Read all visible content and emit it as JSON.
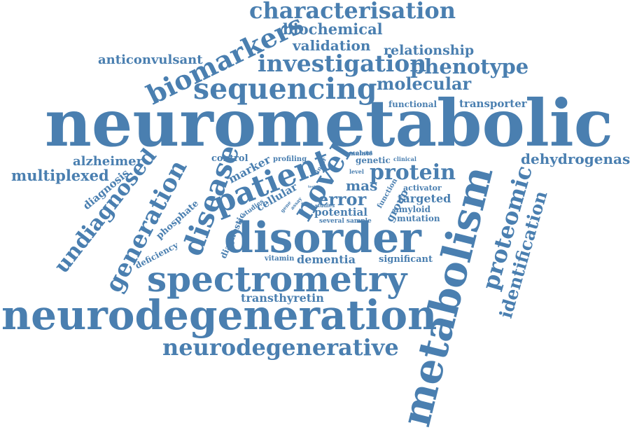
{
  "color": "#4a7fb0",
  "words": [
    {
      "id": "neurometabolic",
      "text": "neurometabolic"
    },
    {
      "id": "neurodegeneration",
      "text": "neurodegeneration"
    },
    {
      "id": "metabolism",
      "text": "metabolism"
    },
    {
      "id": "disorder",
      "text": "disorder"
    },
    {
      "id": "spectrometry",
      "text": "spectrometry"
    },
    {
      "id": "sequencing",
      "text": "sequencing"
    },
    {
      "id": "neurodegenerative",
      "text": "neurodegenerative"
    },
    {
      "id": "characterisation",
      "text": "characterisation"
    },
    {
      "id": "investigation",
      "text": "investigation"
    },
    {
      "id": "biomarkers",
      "text": "biomarkers"
    },
    {
      "id": "patient",
      "text": "patient"
    },
    {
      "id": "disease",
      "text": "disease"
    },
    {
      "id": "novel",
      "text": "novel"
    },
    {
      "id": "protein",
      "text": "protein"
    },
    {
      "id": "proteomic",
      "text": "proteomic"
    },
    {
      "id": "identification",
      "text": "identification"
    },
    {
      "id": "undiagnosed",
      "text": "undiagnosed"
    },
    {
      "id": "generation",
      "text": "generation"
    },
    {
      "id": "phenotype",
      "text": "phenotype"
    },
    {
      "id": "molecular",
      "text": "molecular"
    },
    {
      "id": "validation",
      "text": "validation"
    },
    {
      "id": "relationship",
      "text": "relationship"
    },
    {
      "id": "biochemical",
      "text": "biochemical"
    },
    {
      "id": "anticonvulsant",
      "text": "anticonvulsant"
    },
    {
      "id": "dehydrogenase",
      "text": "dehydrogenase"
    },
    {
      "id": "multiplexed",
      "text": "multiplexed"
    },
    {
      "id": "alzheimer",
      "text": "alzheimer"
    },
    {
      "id": "diagnosis",
      "text": "diagnosis"
    },
    {
      "id": "error",
      "text": "error"
    },
    {
      "id": "mas",
      "text": "mas"
    },
    {
      "id": "dementia",
      "text": "dementia"
    },
    {
      "id": "transthyretin",
      "text": "transthyretin"
    },
    {
      "id": "potential",
      "text": "potential"
    },
    {
      "id": "targeted",
      "text": "targeted"
    },
    {
      "id": "significant",
      "text": "significant"
    },
    {
      "id": "functional",
      "text": "functional"
    },
    {
      "id": "transporter",
      "text": "transporter"
    },
    {
      "id": "marker",
      "text": "marker"
    },
    {
      "id": "control",
      "text": "control"
    },
    {
      "id": "cellular",
      "text": "cellular"
    },
    {
      "id": "phosphate",
      "text": "phosphate"
    },
    {
      "id": "deficiency",
      "text": "deficiency"
    },
    {
      "id": "diagnostic",
      "text": "diagnostic"
    },
    {
      "id": "group",
      "text": "group"
    },
    {
      "id": "function",
      "text": "function"
    },
    {
      "id": "amyloid",
      "text": "amyloid"
    },
    {
      "id": "mutation",
      "text": "mutation"
    },
    {
      "id": "activator",
      "text": "activator"
    },
    {
      "id": "genetic",
      "text": "genetic"
    },
    {
      "id": "clinical",
      "text": "clinical"
    },
    {
      "id": "malate",
      "text": "malate"
    },
    {
      "id": "profiling",
      "text": "profiling"
    },
    {
      "id": "cohort",
      "text": "cohort"
    },
    {
      "id": "linear",
      "text": "linear"
    },
    {
      "id": "level",
      "text": "level"
    },
    {
      "id": "several-sample",
      "text": "several sample"
    },
    {
      "id": "vitamin",
      "text": "vitamin"
    },
    {
      "id": "studies",
      "text": "studies"
    },
    {
      "id": "gene",
      "text": "gene"
    },
    {
      "id": "prose",
      "text": "prose"
    },
    {
      "id": "form",
      "text": "form"
    },
    {
      "id": "test",
      "text": "test"
    },
    {
      "id": "assay",
      "text": "assay"
    }
  ]
}
